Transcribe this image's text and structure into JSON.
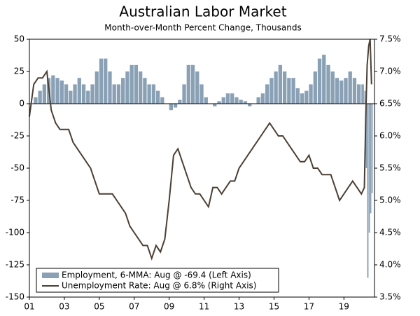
{
  "chart_data": {
    "type": "bar-line-dual",
    "title": "Australian Labor Market",
    "subtitle": "Month-over-Month Percent Change, Thousands",
    "x": [
      2001,
      2001.25,
      2001.5,
      2001.75,
      2002,
      2002.25,
      2002.5,
      2002.75,
      2003,
      2003.25,
      2003.5,
      2003.75,
      2004,
      2004.25,
      2004.5,
      2004.75,
      2005,
      2005.25,
      2005.5,
      2005.75,
      2006,
      2006.25,
      2006.5,
      2006.75,
      2007,
      2007.25,
      2007.5,
      2007.75,
      2008,
      2008.25,
      2008.5,
      2008.75,
      2009,
      2009.25,
      2009.5,
      2009.75,
      2010,
      2010.25,
      2010.5,
      2010.75,
      2011,
      2011.25,
      2011.5,
      2011.75,
      2012,
      2012.25,
      2012.5,
      2012.75,
      2013,
      2013.25,
      2013.5,
      2013.75,
      2014,
      2014.25,
      2014.5,
      2014.75,
      2015,
      2015.25,
      2015.5,
      2015.75,
      2016,
      2016.25,
      2016.5,
      2016.75,
      2017,
      2017.25,
      2017.5,
      2017.75,
      2018,
      2018.25,
      2018.5,
      2018.75,
      2019,
      2019.25,
      2019.5,
      2019.75,
      2020,
      2020.17,
      2020.25,
      2020.33,
      2020.42,
      2020.5,
      2020.58
    ],
    "series": [
      {
        "name": "Employment, 6-MMA: Aug @ -69.4 (Left Axis)",
        "color": "#8aa0b5",
        "axis": "y",
        "values": [
          0,
          5,
          10,
          15,
          20,
          22,
          20,
          18,
          15,
          10,
          15,
          20,
          15,
          10,
          15,
          25,
          35,
          35,
          25,
          15,
          15,
          20,
          25,
          30,
          30,
          25,
          20,
          15,
          15,
          10,
          5,
          0,
          -5,
          -3,
          3,
          15,
          30,
          30,
          25,
          15,
          5,
          0,
          -2,
          2,
          5,
          8,
          8,
          5,
          3,
          2,
          -2,
          0,
          5,
          8,
          15,
          20,
          25,
          30,
          25,
          20,
          20,
          12,
          8,
          10,
          15,
          25,
          35,
          38,
          30,
          25,
          20,
          18,
          20,
          25,
          20,
          15,
          15,
          10,
          -50,
          -135,
          -100,
          -85,
          -69.4
        ]
      },
      {
        "name": "Unemployment Rate: Aug @ 6.8% (Right Axis)",
        "color": "#4a3f35",
        "axis": "y2",
        "values": [
          6.3,
          6.8,
          6.9,
          6.9,
          7.0,
          6.4,
          6.2,
          6.1,
          6.1,
          6.1,
          5.9,
          5.8,
          5.7,
          5.6,
          5.5,
          5.3,
          5.1,
          5.1,
          5.1,
          5.1,
          5.0,
          4.9,
          4.8,
          4.6,
          4.5,
          4.4,
          4.3,
          4.3,
          4.1,
          4.3,
          4.2,
          4.4,
          5.0,
          5.7,
          5.8,
          5.6,
          5.4,
          5.2,
          5.1,
          5.1,
          5.0,
          4.9,
          5.2,
          5.2,
          5.1,
          5.2,
          5.3,
          5.3,
          5.5,
          5.6,
          5.7,
          5.8,
          5.9,
          6.0,
          6.1,
          6.2,
          6.1,
          6.0,
          6.0,
          5.9,
          5.8,
          5.7,
          5.6,
          5.6,
          5.7,
          5.5,
          5.5,
          5.4,
          5.4,
          5.4,
          5.2,
          5.0,
          5.1,
          5.2,
          5.3,
          5.2,
          5.1,
          5.2,
          6.3,
          7.1,
          7.4,
          7.5,
          6.8
        ]
      }
    ],
    "xlim": [
      2001,
      2020.75
    ],
    "xticks": [
      {
        "value": 2001,
        "label": "01"
      },
      {
        "value": 2003,
        "label": "03"
      },
      {
        "value": 2005,
        "label": "05"
      },
      {
        "value": 2007,
        "label": "07"
      },
      {
        "value": 2009,
        "label": "09"
      },
      {
        "value": 2011,
        "label": "11"
      },
      {
        "value": 2013,
        "label": "13"
      },
      {
        "value": 2015,
        "label": "15"
      },
      {
        "value": 2017,
        "label": "17"
      },
      {
        "value": 2019,
        "label": "19"
      }
    ],
    "ylim": [
      -150,
      50
    ],
    "yticks": [
      -150,
      -125,
      -100,
      -75,
      -50,
      -25,
      0,
      25,
      50
    ],
    "y2lim": [
      3.5,
      7.5
    ],
    "y2ticks": [
      {
        "value": 3.5,
        "label": "3.5%"
      },
      {
        "value": 4.0,
        "label": "4.0%"
      },
      {
        "value": 4.5,
        "label": "4.5%"
      },
      {
        "value": 5.0,
        "label": "5.0%"
      },
      {
        "value": 5.5,
        "label": "5.5%"
      },
      {
        "value": 6.0,
        "label": "6.0%"
      },
      {
        "value": 6.5,
        "label": "6.5%"
      },
      {
        "value": 7.0,
        "label": "7.0%"
      },
      {
        "value": 7.5,
        "label": "7.5%"
      }
    ],
    "legend": "lower left"
  }
}
